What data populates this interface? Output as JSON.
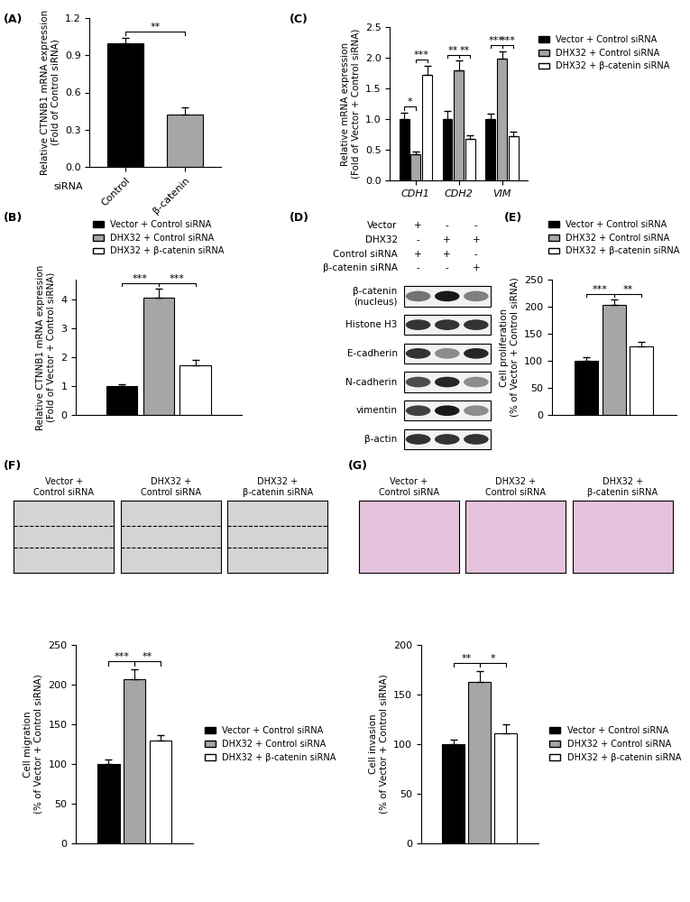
{
  "chart_data": [
    {
      "panel": "(A)",
      "type": "bar",
      "categories": [
        "Control",
        "β-catenin"
      ],
      "values": [
        1.0,
        0.42
      ],
      "error": [
        0.04,
        0.06
      ],
      "colors": [
        "#000000",
        "#a6a6a6"
      ],
      "xlabel": "siRNA",
      "ylabel": "Relative CTNNB1 mRNA expression\n(Fold of Control siRNA)",
      "ylim": [
        0,
        1.2
      ],
      "yticks": [
        {
          "value": 0,
          "label": "0.0"
        },
        {
          "value": 0.3,
          "label": "0.3"
        },
        {
          "value": 0.6,
          "label": "0.6"
        },
        {
          "value": 0.9,
          "label": "0.9"
        },
        {
          "value": 1.2,
          "label": "1.2"
        }
      ],
      "annotations": [
        {
          "from": 0,
          "to": 1,
          "text": "**"
        }
      ]
    },
    {
      "panel": "(B)",
      "type": "bar",
      "categories": [
        null
      ],
      "series": [
        {
          "name": "Vector + Control siRNA",
          "color": "#000000",
          "values": [
            1.0
          ],
          "error": [
            0.08
          ]
        },
        {
          "name": "DHX32 + Control siRNA",
          "color": "#a6a6a6",
          "values": [
            4.08
          ],
          "error": [
            0.3
          ]
        },
        {
          "name": "DHX32 + β-catenin siRNA",
          "color": "#ffffff",
          "values": [
            1.72
          ],
          "error": [
            0.2
          ]
        }
      ],
      "ylabel": "Relative CTNNB1 mRNA expression\n(Fold of Vector + Control siRNA)",
      "ylim": [
        0,
        4.7
      ],
      "yticks": [
        0,
        1,
        2,
        3,
        4
      ],
      "tick_labels": "y",
      "legend": "upper center",
      "annotations": [
        {
          "category": 0,
          "from": 0,
          "to": 1,
          "text": "***"
        },
        {
          "category": 0,
          "from": 1,
          "to": 2,
          "text": "***"
        }
      ]
    },
    {
      "panel": "(C)",
      "type": "bar",
      "categories": [
        "CDH1",
        "CDH2",
        "VIM"
      ],
      "series": [
        {
          "name": "Vector + Control siRNA",
          "color": "#000000",
          "values": [
            1.0,
            1.0,
            1.0
          ],
          "error": [
            0.1,
            0.13,
            0.09
          ]
        },
        {
          "name": "DHX32 + Control siRNA",
          "color": "#a6a6a6",
          "values": [
            0.42,
            1.8,
            1.99
          ],
          "error": [
            0.05,
            0.15,
            0.12
          ]
        },
        {
          "name": "DHX32 + β-catenin siRNA",
          "color": "#ffffff",
          "values": [
            1.72,
            0.67,
            0.72
          ],
          "error": [
            0.15,
            0.07,
            0.07
          ]
        }
      ],
      "ylabel": "Relative mRNA expression\n(Fold of Vector + Control siRNA)",
      "ylim": [
        0,
        2.5
      ],
      "yticks": [
        {
          "value": 0,
          "label": "0.0"
        },
        {
          "value": 0.5,
          "label": "0.5"
        },
        {
          "value": 1.0,
          "label": "1.0"
        },
        {
          "value": 1.5,
          "label": "1.5"
        },
        {
          "value": 2.0,
          "label": "2.0"
        },
        {
          "value": 2.5,
          "label": "2.5"
        }
      ],
      "legend": "upper left",
      "annotations": [
        {
          "category": 0,
          "from": 0,
          "to": 1,
          "text": "*"
        },
        {
          "category": 0,
          "from": 1,
          "to": 2,
          "text": "***"
        },
        {
          "category": 1,
          "from": 0,
          "to": 1,
          "text": "**"
        },
        {
          "category": 1,
          "from": 1,
          "to": 2,
          "text": "**"
        },
        {
          "category": 2,
          "from": 0,
          "to": 1,
          "text": "***"
        },
        {
          "category": 2,
          "from": 1,
          "to": 2,
          "text": "***"
        }
      ]
    },
    {
      "panel": "(E)",
      "type": "bar",
      "categories": [
        null
      ],
      "series": [
        {
          "name": "Vector + Control siRNA",
          "color": "#000000",
          "values": [
            100
          ],
          "error": [
            6
          ]
        },
        {
          "name": "DHX32 + Control siRNA",
          "color": "#a6a6a6",
          "values": [
            203
          ],
          "error": [
            10
          ]
        },
        {
          "name": "DHX32 + β-catenin siRNA",
          "color": "#ffffff",
          "values": [
            127
          ],
          "error": [
            8
          ]
        }
      ],
      "ylabel": "Cell proliferation\n(% of Vector + Control siRNA)",
      "ylim": [
        0,
        250
      ],
      "yticks": [
        0,
        50,
        100,
        150,
        200,
        250
      ],
      "tick_labels": "y",
      "legend": "upper center",
      "annotations": [
        {
          "category": 0,
          "from": 0,
          "to": 1,
          "text": "***"
        },
        {
          "category": 0,
          "from": 1,
          "to": 2,
          "text": "**"
        }
      ]
    },
    {
      "panel": "(F)",
      "type": "bar",
      "categories": [
        null
      ],
      "image_labels": [
        "Vector +\nControl siRNA",
        "DHX32 +\nControl siRNA",
        "DHX32 +\nβ-catenin siRNA"
      ],
      "series": [
        {
          "name": "Vector + Control siRNA",
          "color": "#000000",
          "values": [
            100
          ],
          "error": [
            6
          ]
        },
        {
          "name": "DHX32 + Control siRNA",
          "color": "#a6a6a6",
          "values": [
            207
          ],
          "error": [
            12
          ]
        },
        {
          "name": "DHX32 + β-catenin siRNA",
          "color": "#ffffff",
          "values": [
            129
          ],
          "error": [
            7
          ]
        }
      ],
      "ylabel": "Cell migration\n(% of Vector + Control siRNA)",
      "ylim": [
        0,
        250
      ],
      "yticks": [
        0,
        50,
        100,
        150,
        200,
        250
      ],
      "tick_labels": "y",
      "legend": "center left",
      "annotations": [
        {
          "category": 0,
          "from": 0,
          "to": 1,
          "text": "***"
        },
        {
          "category": 0,
          "from": 1,
          "to": 2,
          "text": "**"
        }
      ]
    },
    {
      "panel": "(G)",
      "type": "bar",
      "categories": [
        null
      ],
      "image_labels": [
        "Vector +\nControl siRNA",
        "DHX32 +\nControl siRNA",
        "DHX32 +\nβ-catenin siRNA"
      ],
      "series": [
        {
          "name": "Vector + Control siRNA",
          "color": "#000000",
          "values": [
            100
          ],
          "error": [
            5
          ]
        },
        {
          "name": "DHX32 + Control siRNA",
          "color": "#a6a6a6",
          "values": [
            163
          ],
          "error": [
            11
          ]
        },
        {
          "name": "DHX32 + β-catenin siRNA",
          "color": "#ffffff",
          "values": [
            111
          ],
          "error": [
            9
          ]
        }
      ],
      "ylabel": "Cell invasion\n(% of Vector + Control siRNA)",
      "ylim": [
        0,
        200
      ],
      "yticks": [
        0,
        50,
        100,
        150,
        200
      ],
      "tick_labels": "y",
      "legend": "center left",
      "annotations": [
        {
          "category": 0,
          "from": 0,
          "to": 1,
          "text": "**"
        },
        {
          "category": 0,
          "from": 1,
          "to": 2,
          "text": "*"
        }
      ]
    }
  ],
  "western_blot": {
    "panel": "(D)",
    "treatments": [
      {
        "label": "Vector",
        "signs": [
          "+",
          "-",
          "-"
        ]
      },
      {
        "label": "DHX32",
        "signs": [
          "-",
          "+",
          "+"
        ]
      },
      {
        "label": "Control siRNA",
        "signs": [
          "+",
          "+",
          "-"
        ]
      },
      {
        "label": "β-catenin siRNA",
        "signs": [
          "-",
          "-",
          "+"
        ]
      }
    ],
    "bands": [
      {
        "label": "β-catenin\n(nucleus)",
        "intensity": [
          0.55,
          0.9,
          0.5
        ]
      },
      {
        "label": "Histone H3",
        "intensity": [
          0.8,
          0.8,
          0.8
        ]
      },
      {
        "label": "E-cadherin",
        "intensity": [
          0.8,
          0.45,
          0.85
        ]
      },
      {
        "label": "N-cadherin",
        "intensity": [
          0.7,
          0.85,
          0.45
        ]
      },
      {
        "label": "vimentin",
        "intensity": [
          0.75,
          0.9,
          0.45
        ]
      },
      {
        "label": "β-actin",
        "intensity": [
          0.8,
          0.8,
          0.8
        ]
      }
    ]
  }
}
